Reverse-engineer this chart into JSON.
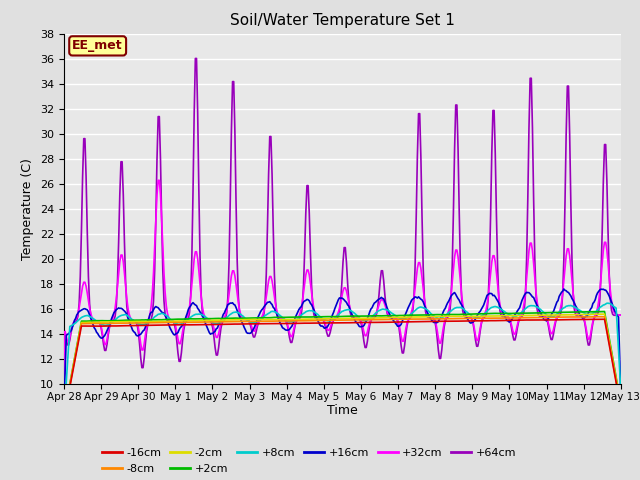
{
  "title": "Soil/Water Temperature Set 1",
  "xlabel": "Time",
  "ylabel": "Temperature (C)",
  "ylim": [
    10,
    38
  ],
  "yticks": [
    10,
    12,
    14,
    16,
    18,
    20,
    22,
    24,
    26,
    28,
    30,
    32,
    34,
    36,
    38
  ],
  "x_labels": [
    "Apr 28",
    "Apr 29",
    "Apr 30",
    "May 1",
    "May 2",
    "May 3",
    "May 4",
    "May 5",
    "May 6",
    "May 7",
    "May 8",
    "May 9",
    "May 10",
    "May 11",
    "May 12",
    "May 13"
  ],
  "background_color": "#e0e0e0",
  "plot_bg_color": "#e8e8e8",
  "annotation_text": "EE_met",
  "annotation_bg": "#ffff99",
  "annotation_border": "#800000",
  "series": {
    "-16cm": {
      "color": "#dd0000",
      "lw": 1.2
    },
    "-8cm": {
      "color": "#ff8800",
      "lw": 1.2
    },
    "-2cm": {
      "color": "#dddd00",
      "lw": 1.2
    },
    "+2cm": {
      "color": "#00bb00",
      "lw": 1.2
    },
    "+8cm": {
      "color": "#00cccc",
      "lw": 1.2
    },
    "+16cm": {
      "color": "#0000cc",
      "lw": 1.2
    },
    "+32cm": {
      "color": "#ff00ff",
      "lw": 1.2
    },
    "+64cm": {
      "color": "#9900bb",
      "lw": 1.2
    }
  },
  "legend_row1": [
    "-16cm",
    "-8cm",
    "-2cm",
    "+2cm",
    "+8cm",
    "+16cm"
  ],
  "legend_row2": [
    "+32cm",
    "+64cm"
  ]
}
